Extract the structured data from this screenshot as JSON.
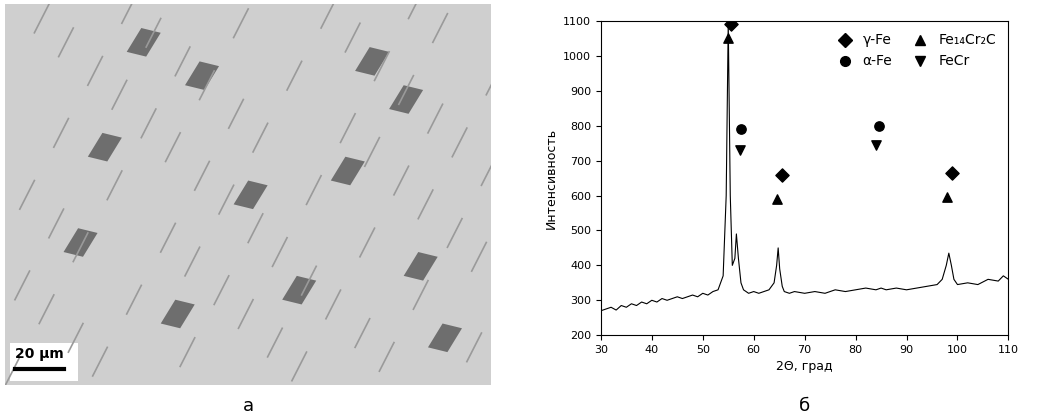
{
  "image": {
    "scale_bar_label": "20 µm",
    "caption": "а"
  },
  "chart_data": {
    "type": "line",
    "caption": "б",
    "x_label": "2Θ, град",
    "y_label": "Интенсивность",
    "xlim": [
      30,
      110
    ],
    "xticks": [
      30,
      40,
      50,
      60,
      70,
      80,
      90,
      100,
      110
    ],
    "ylim": [
      200,
      1100
    ],
    "yticks": [
      200,
      300,
      400,
      500,
      600,
      700,
      800,
      900,
      1000,
      1100
    ],
    "grid": false,
    "legend": "upper right",
    "series": [
      {
        "type": "line",
        "color": "#000000",
        "x": [
          30,
          31,
          32,
          33,
          34,
          35,
          36,
          37,
          38,
          39,
          40,
          41,
          42,
          43,
          44,
          45,
          46,
          47,
          48,
          49,
          50,
          51,
          52,
          53,
          54,
          54.6,
          55,
          55.4,
          55.8,
          56.3,
          56.6,
          57,
          57.5,
          58,
          59,
          60,
          61,
          62,
          63,
          64,
          64.5,
          64.8,
          65.1,
          65.6,
          66,
          67,
          68,
          70,
          72,
          74,
          76,
          78,
          80,
          82,
          84,
          85,
          86,
          88,
          90,
          92,
          94,
          96,
          97,
          97.8,
          98.3,
          98.8,
          99.3,
          100,
          102,
          104,
          106,
          108,
          109,
          110
        ],
        "values": [
          270,
          275,
          280,
          272,
          285,
          280,
          290,
          285,
          295,
          290,
          300,
          295,
          305,
          300,
          305,
          310,
          305,
          310,
          315,
          310,
          320,
          315,
          325,
          330,
          370,
          600,
          1095,
          600,
          400,
          420,
          490,
          420,
          350,
          330,
          320,
          325,
          320,
          325,
          330,
          350,
          400,
          450,
          390,
          340,
          325,
          320,
          325,
          320,
          325,
          320,
          330,
          325,
          330,
          335,
          330,
          335,
          330,
          335,
          330,
          335,
          340,
          345,
          360,
          400,
          435,
          400,
          360,
          345,
          350,
          345,
          360,
          355,
          370,
          360
        ]
      },
      {
        "type": "scatter",
        "name": "γ-Fe",
        "marker": "diamond",
        "color": "#000000",
        "x": [
          55.5,
          65.5,
          99
        ],
        "values": [
          1090,
          660,
          665
        ]
      },
      {
        "type": "scatter",
        "name": "α-Fe",
        "marker": "circle",
        "color": "#000000",
        "x": [
          57.5,
          84.5
        ],
        "values": [
          790,
          800
        ]
      },
      {
        "type": "scatter",
        "name": "Fe₁₄Cr₂C",
        "marker": "triangle_up",
        "color": "#000000",
        "x": [
          55,
          64.5,
          98
        ],
        "values": [
          1050,
          590,
          595
        ]
      },
      {
        "type": "scatter",
        "name": "FeCr",
        "marker": "triangle_down",
        "color": "#000000",
        "x": [
          57.3,
          84
        ],
        "values": [
          730,
          745
        ]
      }
    ]
  }
}
